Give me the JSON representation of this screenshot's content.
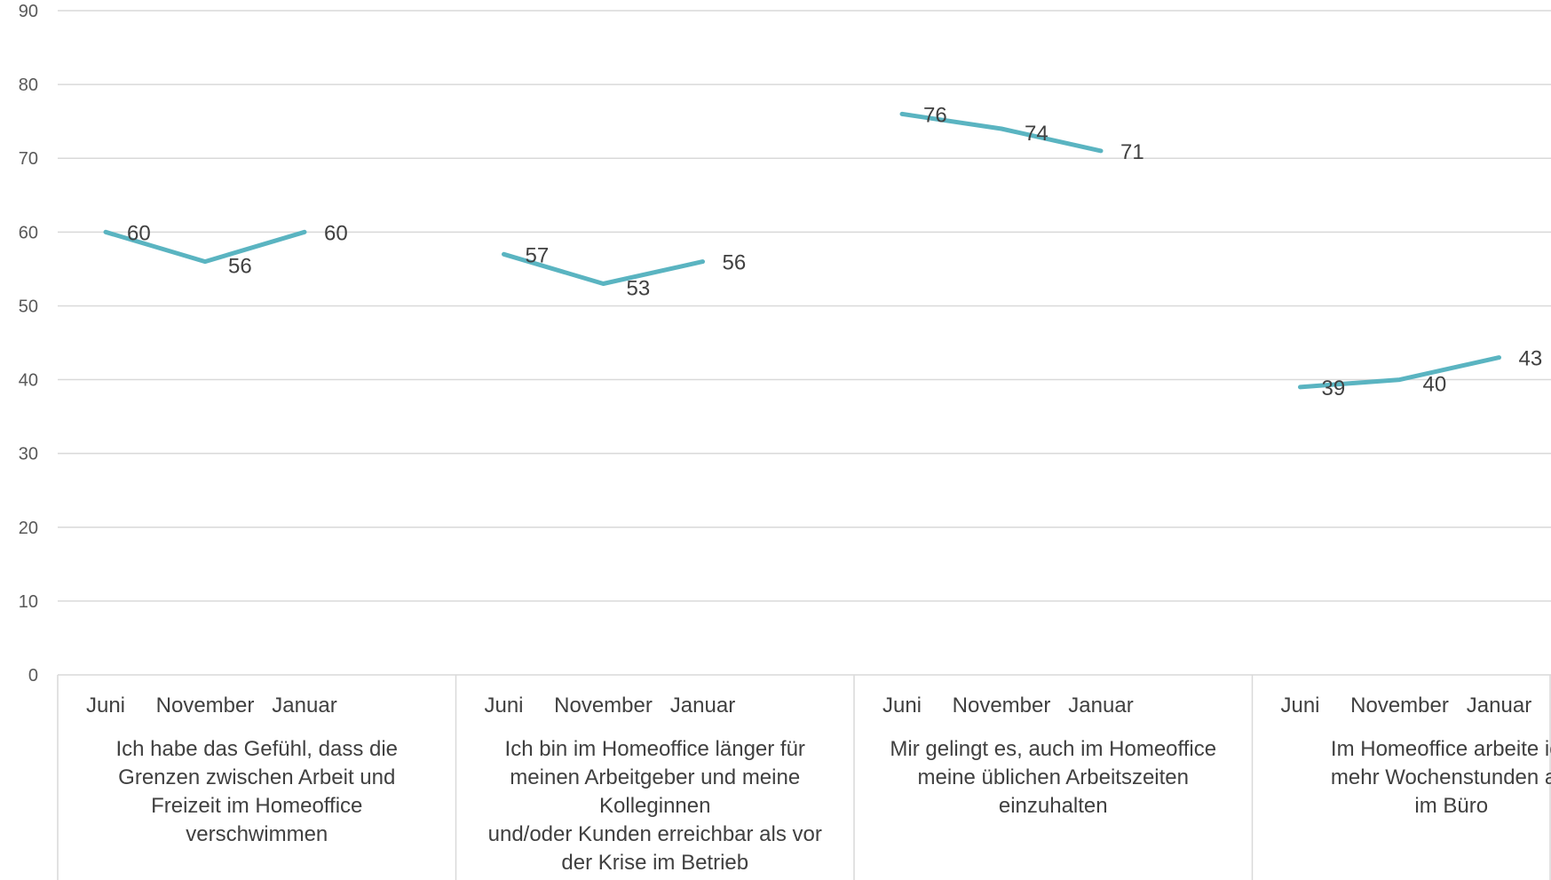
{
  "chart_data": {
    "type": "line",
    "ylim": [
      0,
      90
    ],
    "yticks": [
      0,
      10,
      20,
      30,
      40,
      50,
      60,
      70,
      80,
      90
    ],
    "grid": true,
    "legend": "none",
    "line_color": "#5ab4c1",
    "groups": [
      {
        "label_lines": [
          "Ich habe das Gefühl, dass die",
          "Grenzen zwischen Arbeit und",
          "Freizeit im Homeoffice",
          "verschwimmen"
        ],
        "categories": [
          "Juni",
          "November",
          "Januar"
        ],
        "values": [
          60,
          56,
          60
        ]
      },
      {
        "label_lines": [
          "Ich bin im Homeoffice länger für",
          "meinen Arbeitgeber und meine",
          "Kolleginnen",
          "und/oder Kunden erreichbar als vor",
          "der Krise im Betrieb"
        ],
        "categories": [
          "Juni",
          "November",
          "Januar"
        ],
        "values": [
          57,
          53,
          56
        ]
      },
      {
        "label_lines": [
          "Mir gelingt es, auch im Homeoffice",
          "meine üblichen Arbeitszeiten",
          "einzuhalten"
        ],
        "categories": [
          "Juni",
          "November",
          "Januar"
        ],
        "values": [
          76,
          74,
          71
        ]
      },
      {
        "label_lines": [
          "Im Homeoffice arbeite ich",
          "mehr Wochenstunden als",
          "im Büro"
        ],
        "categories": [
          "Juni",
          "November",
          "Januar"
        ],
        "values": [
          39,
          40,
          43
        ]
      }
    ]
  }
}
